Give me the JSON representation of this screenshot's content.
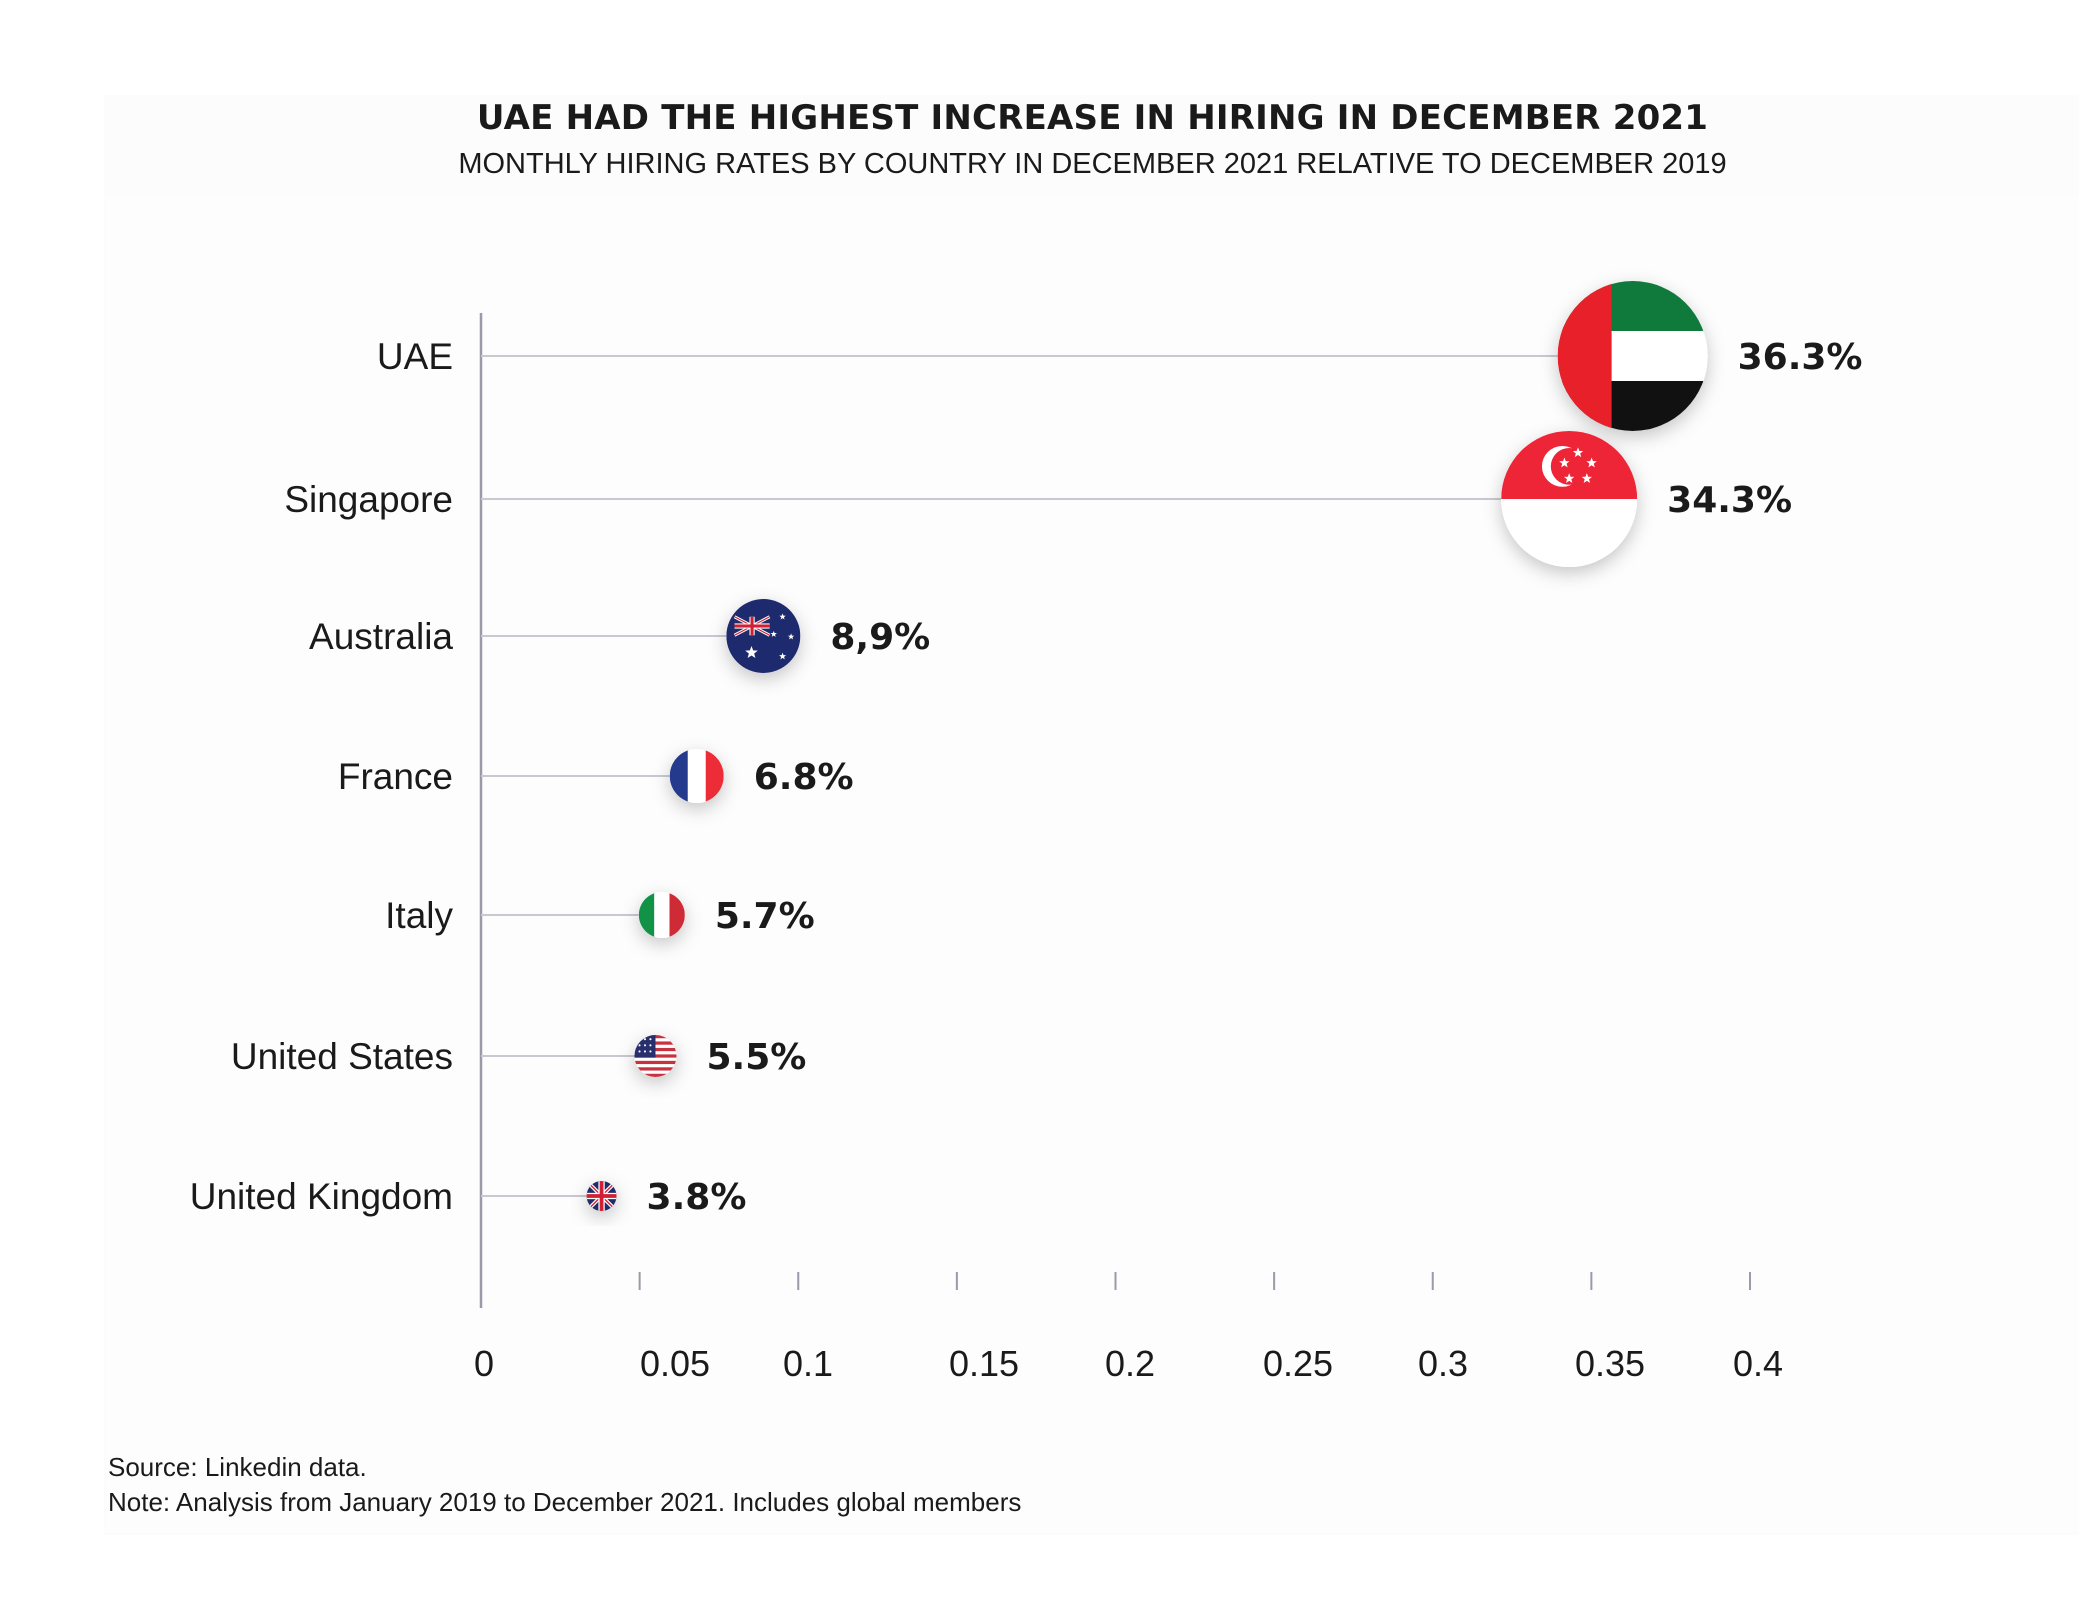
{
  "chart_data": {
    "type": "lollipop",
    "title": "UAE HAD THE HIGHEST INCREASE IN HIRING IN DECEMBER 2021",
    "subtitle": "MONTHLY HIRING RATES BY COUNTRY IN DECEMBER 2021 RELATIVE TO DECEMBER 2019",
    "xlim": [
      0,
      0.4
    ],
    "x_ticks": [
      "0",
      "0.05",
      "0.1",
      "0.15",
      "0.2",
      "0.25",
      "0.3",
      "0.35",
      "0.4"
    ],
    "grid": false,
    "categories": [
      "UAE",
      "Singapore",
      "Australia",
      "France",
      "Italy",
      "United States",
      "United Kingdom"
    ],
    "values": [
      0.363,
      0.343,
      0.089,
      0.068,
      0.057,
      0.055,
      0.038
    ],
    "value_labels": [
      "36.3%",
      "34.3%",
      "8,9%",
      "6.8%",
      "5.7%",
      "5.5%",
      "3.8%"
    ],
    "markers": [
      "uae-flag-icon",
      "singapore-flag-icon",
      "australia-flag-icon",
      "france-flag-icon",
      "italy-flag-icon",
      "us-flag-icon",
      "uk-flag-icon"
    ]
  },
  "footer": {
    "source": "Source: Linkedin data.",
    "note": "Note: Analysis from January 2019 to December 2021. Includes global members"
  },
  "colors": {
    "axis": "#9a9aa8",
    "stem": "#c8c8d0",
    "uae_green": "#0f7a3c",
    "uae_red": "#e8202a",
    "singapore_red": "#ee2536",
    "australia_blue": "#1e2a6e",
    "france_blue": "#243a8c",
    "france_red": "#ec2c37",
    "italy_green": "#119246",
    "italy_red": "#ce2b37",
    "us_red": "#c8313e",
    "us_blue": "#27306c",
    "uk_blue": "#1f2d6b",
    "uk_red": "#d21f34"
  }
}
